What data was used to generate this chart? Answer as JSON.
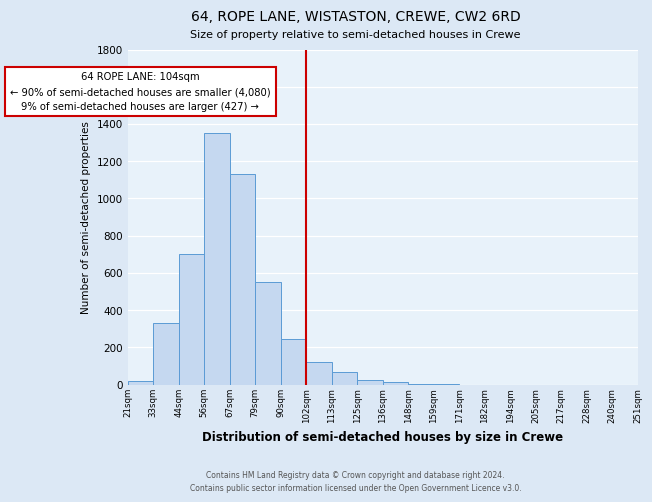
{
  "title": "64, ROPE LANE, WISTASTON, CREWE, CW2 6RD",
  "subtitle": "Size of property relative to semi-detached houses in Crewe",
  "xlabel": "Distribution of semi-detached houses by size in Crewe",
  "ylabel": "Number of semi-detached properties",
  "bin_labels": [
    "21sqm",
    "33sqm",
    "44sqm",
    "56sqm",
    "67sqm",
    "79sqm",
    "90sqm",
    "102sqm",
    "113sqm",
    "125sqm",
    "136sqm",
    "148sqm",
    "159sqm",
    "171sqm",
    "182sqm",
    "194sqm",
    "205sqm",
    "217sqm",
    "228sqm",
    "240sqm",
    "251sqm"
  ],
  "bar_values": [
    20,
    330,
    700,
    1350,
    1130,
    550,
    245,
    120,
    65,
    25,
    15,
    5,
    2,
    0,
    0,
    0,
    0,
    0,
    0,
    0
  ],
  "bar_color": "#c5d8f0",
  "bar_edge_color": "#5b9bd5",
  "vline_index": 7,
  "vline_color": "#cc0000",
  "annotation_title": "64 ROPE LANE: 104sqm",
  "annotation_line1": "← 90% of semi-detached houses are smaller (4,080)",
  "annotation_line2": "9% of semi-detached houses are larger (427) →",
  "annotation_box_color": "#cc0000",
  "ylim": [
    0,
    1800
  ],
  "yticks": [
    0,
    200,
    400,
    600,
    800,
    1000,
    1200,
    1400,
    1600,
    1800
  ],
  "footer_line1": "Contains HM Land Registry data © Crown copyright and database right 2024.",
  "footer_line2": "Contains public sector information licensed under the Open Government Licence v3.0.",
  "bg_color": "#dce8f5",
  "plot_bg_color": "#e8f2fa"
}
